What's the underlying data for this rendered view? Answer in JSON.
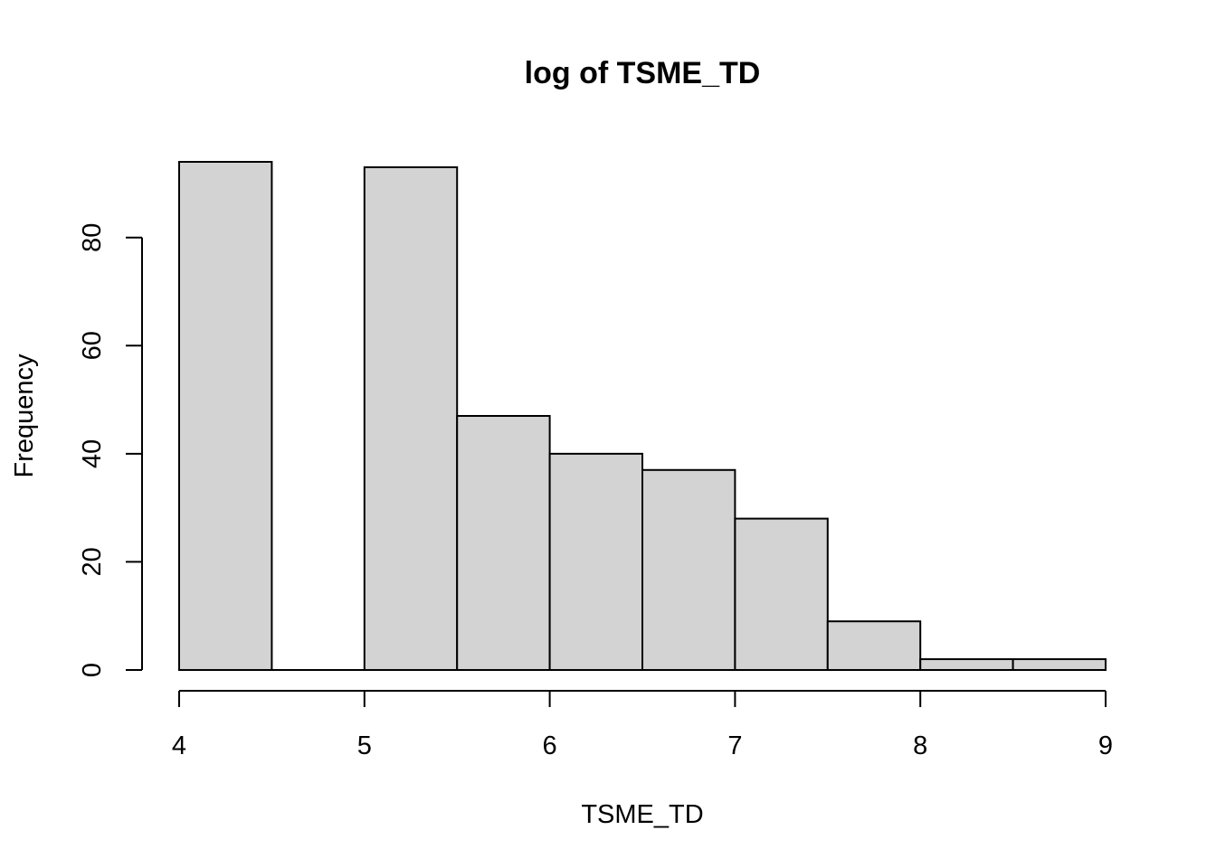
{
  "chart_data": {
    "type": "bar",
    "title": "log of TSME_TD",
    "xlabel": "TSME_TD",
    "ylabel": "Frequency",
    "bins": [
      {
        "start": 4.0,
        "end": 4.5,
        "count": 94
      },
      {
        "start": 4.5,
        "end": 5.0,
        "count": 0
      },
      {
        "start": 5.0,
        "end": 5.5,
        "count": 93
      },
      {
        "start": 5.5,
        "end": 6.0,
        "count": 47
      },
      {
        "start": 6.0,
        "end": 6.5,
        "count": 40
      },
      {
        "start": 6.5,
        "end": 7.0,
        "count": 37
      },
      {
        "start": 7.0,
        "end": 7.5,
        "count": 28
      },
      {
        "start": 7.5,
        "end": 8.0,
        "count": 9
      },
      {
        "start": 8.0,
        "end": 8.5,
        "count": 2
      },
      {
        "start": 8.5,
        "end": 9.0,
        "count": 2
      }
    ],
    "xlim": [
      4,
      9
    ],
    "ylim": [
      0,
      94
    ],
    "x_ticks": [
      "4",
      "5",
      "6",
      "7",
      "8",
      "9"
    ],
    "y_ticks": [
      "0",
      "20",
      "40",
      "60",
      "80"
    ],
    "grid": false,
    "colors": {
      "bar_fill": "#d3d3d3",
      "bar_stroke": "#000000"
    }
  }
}
